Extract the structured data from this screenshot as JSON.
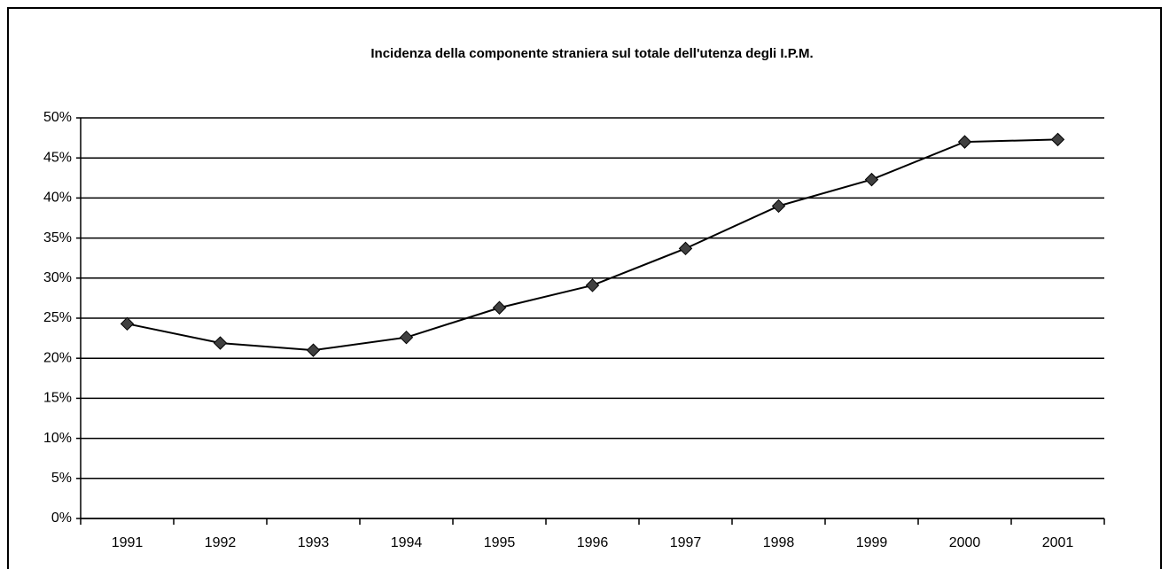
{
  "chart_data": {
    "type": "line",
    "title": "Incidenza della componente straniera sul totale dell'utenza degli I.P.M.",
    "categories": [
      "1991",
      "1992",
      "1993",
      "1994",
      "1995",
      "1996",
      "1997",
      "1998",
      "1999",
      "2000",
      "2001"
    ],
    "series": [
      {
        "color": "#000000",
        "marker_color": "#404040",
        "values": [
          24.3,
          21.9,
          21.0,
          22.6,
          26.3,
          29.1,
          33.7,
          39.0,
          42.3,
          47.0,
          47.3
        ]
      }
    ],
    "ylim": [
      0,
      50
    ],
    "yticks": [
      {
        "value": 0,
        "label": "0%"
      },
      {
        "value": 5,
        "label": "5%"
      },
      {
        "value": 10,
        "label": "10%"
      },
      {
        "value": 15,
        "label": "15%"
      },
      {
        "value": 20,
        "label": "20%"
      },
      {
        "value": 25,
        "label": "25%"
      },
      {
        "value": 30,
        "label": "30%"
      },
      {
        "value": 35,
        "label": "35%"
      },
      {
        "value": 40,
        "label": "40%"
      },
      {
        "value": 45,
        "label": "45%"
      },
      {
        "value": 50,
        "label": "50%"
      }
    ],
    "grid": true
  }
}
